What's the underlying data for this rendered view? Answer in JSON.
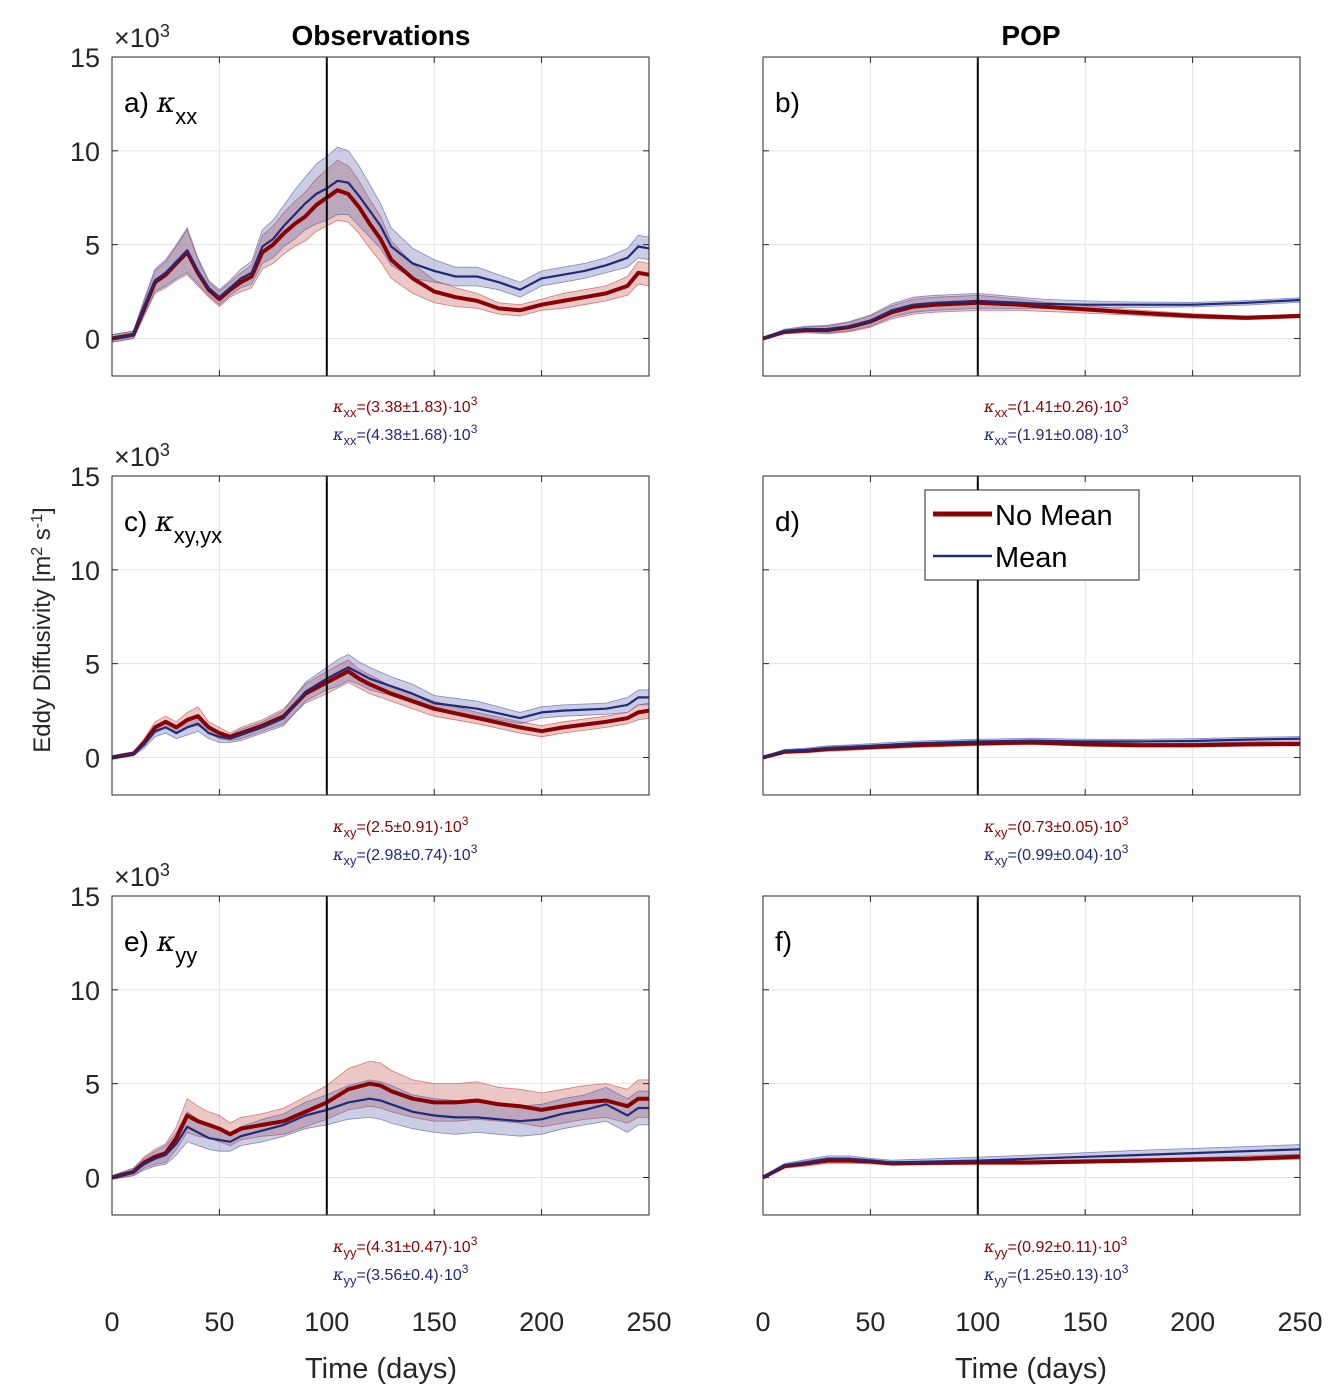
{
  "figure": {
    "ylabel": "Eddy Diffusivity [m",
    "ylabel_sup1": "2",
    "ylabel_mid": " s",
    "ylabel_sup2": "-1",
    "ylabel_end": "]",
    "xlabel": "Time (days)",
    "column_titles": [
      "Observations",
      "POP"
    ],
    "multiplier": "×10",
    "multiplier_exp": "3"
  },
  "legend": {
    "items": [
      {
        "label": "No Mean",
        "color": "#8b0000"
      },
      {
        "label": "Mean",
        "color": "#1f2a7a"
      }
    ]
  },
  "colors": {
    "no_mean": "#8b0000",
    "no_mean_band": "#c0504d",
    "mean": "#1f2a7a",
    "mean_band": "#5a62a8"
  },
  "axes": {
    "xlim": [
      0,
      250
    ],
    "ylim": [
      -2,
      15
    ],
    "xticks": [
      "0",
      "50",
      "100",
      "150",
      "200",
      "250"
    ],
    "yticks": [
      "0",
      "5",
      "10",
      "15"
    ],
    "ytick_values": [
      0,
      5,
      10,
      15
    ],
    "xtick_values": [
      0,
      50,
      100,
      150,
      200,
      250
    ],
    "vline_x": 100,
    "grid": true
  },
  "chart_data": [
    {
      "type": "line",
      "panel": "a",
      "label": "a)",
      "kappa_sub": "xx",
      "x": [
        0,
        10,
        15,
        20,
        25,
        30,
        35,
        40,
        45,
        50,
        55,
        60,
        65,
        70,
        75,
        80,
        85,
        90,
        95,
        100,
        105,
        110,
        115,
        120,
        125,
        130,
        140,
        150,
        160,
        170,
        180,
        190,
        200,
        210,
        220,
        230,
        240,
        245,
        250
      ],
      "series": [
        {
          "name": "No Mean",
          "values": [
            0,
            0.2,
            1.6,
            3.0,
            3.4,
            4.0,
            4.6,
            3.5,
            2.6,
            2.1,
            2.6,
            3.0,
            3.3,
            4.6,
            5.0,
            5.6,
            6.1,
            6.5,
            7.1,
            7.5,
            7.9,
            7.7,
            7.0,
            6.1,
            5.3,
            4.2,
            3.2,
            2.5,
            2.2,
            2.0,
            1.6,
            1.5,
            1.8,
            2.0,
            2.2,
            2.4,
            2.8,
            3.5,
            3.4
          ],
          "band": [
            0.2,
            0.2,
            0.4,
            0.6,
            0.7,
            0.9,
            1.2,
            0.7,
            0.4,
            0.4,
            0.4,
            0.5,
            0.6,
            0.9,
            1.0,
            1.1,
            1.2,
            1.3,
            1.4,
            1.5,
            1.6,
            1.5,
            1.4,
            1.3,
            1.2,
            1.0,
            0.8,
            0.6,
            0.5,
            0.4,
            0.3,
            0.3,
            0.3,
            0.4,
            0.4,
            0.4,
            0.5,
            0.6,
            0.6
          ]
        },
        {
          "name": "Mean",
          "values": [
            0,
            0.2,
            1.7,
            3.1,
            3.5,
            4.1,
            4.7,
            3.6,
            2.7,
            2.2,
            2.7,
            3.2,
            3.5,
            4.9,
            5.3,
            6.0,
            6.6,
            7.2,
            7.7,
            8.0,
            8.4,
            8.3,
            7.6,
            6.8,
            6.0,
            4.9,
            4.0,
            3.6,
            3.3,
            3.3,
            3.0,
            2.6,
            3.2,
            3.4,
            3.6,
            3.9,
            4.3,
            4.9,
            4.8
          ],
          "band": [
            0.2,
            0.2,
            0.4,
            0.6,
            0.7,
            0.9,
            1.2,
            0.7,
            0.4,
            0.4,
            0.4,
            0.5,
            0.6,
            0.9,
            1.0,
            1.1,
            1.3,
            1.4,
            1.6,
            1.7,
            1.8,
            1.7,
            1.6,
            1.4,
            1.2,
            1.0,
            0.8,
            0.6,
            0.5,
            0.5,
            0.4,
            0.4,
            0.4,
            0.4,
            0.4,
            0.4,
            0.5,
            0.6,
            0.6
          ]
        }
      ],
      "stats": [
        {
          "name": "No Mean",
          "sub": "xx",
          "text": "=(3.38±1.83)·10",
          "exp": "3"
        },
        {
          "name": "Mean",
          "sub": "xx",
          "text": "=(4.38±1.68)·10",
          "exp": "3"
        }
      ]
    },
    {
      "type": "line",
      "panel": "b",
      "label": "b)",
      "kappa_sub": "",
      "x": [
        0,
        10,
        20,
        30,
        40,
        50,
        60,
        70,
        80,
        90,
        100,
        110,
        120,
        130,
        150,
        170,
        200,
        225,
        250
      ],
      "series": [
        {
          "name": "No Mean",
          "values": [
            0,
            0.35,
            0.45,
            0.45,
            0.6,
            0.9,
            1.4,
            1.7,
            1.8,
            1.85,
            1.9,
            1.85,
            1.8,
            1.7,
            1.55,
            1.4,
            1.2,
            1.1,
            1.2
          ],
          "band": [
            0.05,
            0.1,
            0.15,
            0.2,
            0.25,
            0.3,
            0.35,
            0.4,
            0.4,
            0.4,
            0.4,
            0.35,
            0.3,
            0.25,
            0.2,
            0.15,
            0.12,
            0.1,
            0.1
          ]
        },
        {
          "name": "Mean",
          "values": [
            0,
            0.4,
            0.5,
            0.5,
            0.65,
            0.95,
            1.5,
            1.8,
            1.9,
            1.95,
            2.0,
            1.95,
            1.9,
            1.85,
            1.8,
            1.8,
            1.8,
            1.9,
            2.05
          ],
          "band": [
            0.05,
            0.1,
            0.15,
            0.2,
            0.25,
            0.3,
            0.35,
            0.4,
            0.4,
            0.4,
            0.4,
            0.35,
            0.3,
            0.25,
            0.2,
            0.15,
            0.12,
            0.12,
            0.12
          ]
        }
      ],
      "stats": [
        {
          "name": "No Mean",
          "sub": "xx",
          "text": "=(1.41±0.26)·10",
          "exp": "3"
        },
        {
          "name": "Mean",
          "sub": "xx",
          "text": "=(1.91±0.08)·10",
          "exp": "3"
        }
      ]
    },
    {
      "type": "line",
      "panel": "c",
      "label": "c)",
      "kappa_sub": "xy,yx",
      "x": [
        0,
        10,
        15,
        20,
        25,
        30,
        35,
        40,
        45,
        50,
        55,
        60,
        70,
        80,
        90,
        100,
        105,
        110,
        115,
        120,
        130,
        140,
        150,
        170,
        190,
        200,
        210,
        230,
        240,
        245,
        250
      ],
      "series": [
        {
          "name": "No Mean",
          "values": [
            0,
            0.2,
            0.8,
            1.6,
            1.9,
            1.6,
            2.0,
            2.2,
            1.6,
            1.3,
            1.1,
            1.3,
            1.7,
            2.2,
            3.4,
            4.0,
            4.3,
            4.6,
            4.2,
            3.9,
            3.4,
            3.0,
            2.6,
            2.1,
            1.6,
            1.4,
            1.6,
            1.9,
            2.1,
            2.4,
            2.5
          ],
          "band": [
            0.1,
            0.1,
            0.2,
            0.3,
            0.3,
            0.3,
            0.4,
            0.5,
            0.3,
            0.3,
            0.2,
            0.3,
            0.3,
            0.4,
            0.5,
            0.6,
            0.6,
            0.6,
            0.5,
            0.5,
            0.4,
            0.4,
            0.4,
            0.3,
            0.3,
            0.3,
            0.3,
            0.3,
            0.3,
            0.4,
            0.4
          ]
        },
        {
          "name": "Mean",
          "values": [
            0,
            0.2,
            0.7,
            1.4,
            1.6,
            1.3,
            1.6,
            1.8,
            1.3,
            1.1,
            1.0,
            1.2,
            1.6,
            2.1,
            3.5,
            4.2,
            4.5,
            4.8,
            4.5,
            4.2,
            3.8,
            3.4,
            2.9,
            2.6,
            2.1,
            2.4,
            2.5,
            2.6,
            2.8,
            3.2,
            3.2
          ],
          "band": [
            0.1,
            0.1,
            0.2,
            0.3,
            0.3,
            0.3,
            0.4,
            0.4,
            0.3,
            0.3,
            0.2,
            0.3,
            0.3,
            0.4,
            0.5,
            0.6,
            0.7,
            0.7,
            0.6,
            0.6,
            0.5,
            0.5,
            0.4,
            0.4,
            0.3,
            0.3,
            0.3,
            0.3,
            0.4,
            0.4,
            0.4
          ]
        }
      ],
      "stats": [
        {
          "name": "No Mean",
          "sub": "xy",
          "text": "=(2.5±0.91)·10",
          "exp": "3"
        },
        {
          "name": "Mean",
          "sub": "xy",
          "text": "=(2.98±0.74)·10",
          "exp": "3"
        }
      ]
    },
    {
      "type": "line",
      "panel": "d",
      "label": "d)",
      "kappa_sub": "",
      "x": [
        0,
        10,
        20,
        30,
        40,
        50,
        70,
        100,
        125,
        150,
        175,
        200,
        225,
        250
      ],
      "series": [
        {
          "name": "No Mean",
          "values": [
            0,
            0.3,
            0.35,
            0.45,
            0.5,
            0.55,
            0.65,
            0.75,
            0.8,
            0.7,
            0.65,
            0.65,
            0.7,
            0.72
          ],
          "band": [
            0.05,
            0.08,
            0.1,
            0.12,
            0.12,
            0.12,
            0.12,
            0.12,
            0.1,
            0.1,
            0.1,
            0.1,
            0.1,
            0.1
          ]
        },
        {
          "name": "Mean",
          "values": [
            0,
            0.35,
            0.4,
            0.5,
            0.55,
            0.62,
            0.75,
            0.85,
            0.9,
            0.85,
            0.85,
            0.88,
            0.95,
            1.0
          ],
          "band": [
            0.05,
            0.08,
            0.1,
            0.12,
            0.12,
            0.12,
            0.12,
            0.12,
            0.12,
            0.12,
            0.12,
            0.12,
            0.12,
            0.12
          ]
        }
      ],
      "stats": [
        {
          "name": "No Mean",
          "sub": "xy",
          "text": "=(0.73±0.05)·10",
          "exp": "3"
        },
        {
          "name": "Mean",
          "sub": "xy",
          "text": "=(0.99±0.04)·10",
          "exp": "3"
        }
      ]
    },
    {
      "type": "line",
      "panel": "e",
      "label": "e)",
      "kappa_sub": "yy",
      "x": [
        0,
        10,
        15,
        20,
        25,
        30,
        35,
        40,
        45,
        50,
        55,
        60,
        70,
        80,
        90,
        100,
        110,
        120,
        125,
        130,
        140,
        150,
        160,
        170,
        180,
        190,
        200,
        210,
        220,
        230,
        240,
        245,
        250
      ],
      "series": [
        {
          "name": "No Mean",
          "values": [
            0,
            0.3,
            0.8,
            1.1,
            1.3,
            2.1,
            3.3,
            3.0,
            2.8,
            2.6,
            2.3,
            2.6,
            2.8,
            3.0,
            3.5,
            4.0,
            4.7,
            5.0,
            4.9,
            4.6,
            4.2,
            4.0,
            4.0,
            4.1,
            3.9,
            3.8,
            3.6,
            3.8,
            4.0,
            4.1,
            3.8,
            4.2,
            4.2
          ],
          "band": [
            0.1,
            0.2,
            0.3,
            0.4,
            0.5,
            0.6,
            0.9,
            0.8,
            0.7,
            0.7,
            0.6,
            0.6,
            0.6,
            0.7,
            0.8,
            0.9,
            1.1,
            1.2,
            1.2,
            1.1,
            1.0,
            1.0,
            1.0,
            1.0,
            0.9,
            0.9,
            0.9,
            0.9,
            0.9,
            0.9,
            0.9,
            1.0,
            1.0
          ]
        },
        {
          "name": "Mean",
          "values": [
            0,
            0.3,
            0.7,
            1.0,
            1.2,
            1.8,
            2.7,
            2.4,
            2.1,
            2.0,
            1.9,
            2.2,
            2.5,
            2.8,
            3.3,
            3.6,
            4.0,
            4.2,
            4.1,
            3.9,
            3.5,
            3.3,
            3.2,
            3.2,
            3.1,
            3.0,
            3.1,
            3.4,
            3.6,
            3.9,
            3.3,
            3.7,
            3.7
          ],
          "band": [
            0.1,
            0.2,
            0.3,
            0.4,
            0.5,
            0.6,
            0.8,
            0.7,
            0.6,
            0.6,
            0.5,
            0.5,
            0.6,
            0.6,
            0.7,
            0.8,
            0.9,
            1.0,
            1.0,
            1.0,
            0.9,
            0.9,
            0.9,
            0.8,
            0.8,
            0.8,
            0.8,
            0.8,
            0.8,
            0.9,
            0.9,
            0.9,
            0.9
          ]
        }
      ],
      "stats": [
        {
          "name": "No Mean",
          "sub": "yy",
          "text": "=(4.31±0.47)·10",
          "exp": "3"
        },
        {
          "name": "Mean",
          "sub": "yy",
          "text": "=(3.56±0.4)·10",
          "exp": "3"
        }
      ]
    },
    {
      "type": "line",
      "panel": "f",
      "label": "f)",
      "kappa_sub": "",
      "x": [
        0,
        10,
        20,
        30,
        40,
        50,
        60,
        80,
        100,
        125,
        150,
        175,
        200,
        225,
        250
      ],
      "series": [
        {
          "name": "No Mean",
          "values": [
            0,
            0.6,
            0.75,
            0.9,
            0.9,
            0.85,
            0.75,
            0.78,
            0.8,
            0.8,
            0.85,
            0.9,
            0.95,
            1.0,
            1.1
          ],
          "band": [
            0.05,
            0.1,
            0.15,
            0.15,
            0.15,
            0.12,
            0.1,
            0.1,
            0.1,
            0.1,
            0.1,
            0.1,
            0.1,
            0.1,
            0.12
          ]
        },
        {
          "name": "Mean",
          "values": [
            0,
            0.65,
            0.8,
            1.0,
            1.0,
            0.9,
            0.8,
            0.85,
            0.9,
            1.0,
            1.1,
            1.2,
            1.3,
            1.4,
            1.5
          ],
          "band": [
            0.05,
            0.1,
            0.15,
            0.15,
            0.15,
            0.12,
            0.12,
            0.15,
            0.18,
            0.2,
            0.22,
            0.25,
            0.25,
            0.25,
            0.25
          ]
        }
      ],
      "stats": [
        {
          "name": "No Mean",
          "sub": "yy",
          "text": "=(0.92±0.11)·10",
          "exp": "3"
        },
        {
          "name": "Mean",
          "sub": "yy",
          "text": "=(1.25±0.13)·10",
          "exp": "3"
        }
      ]
    }
  ]
}
